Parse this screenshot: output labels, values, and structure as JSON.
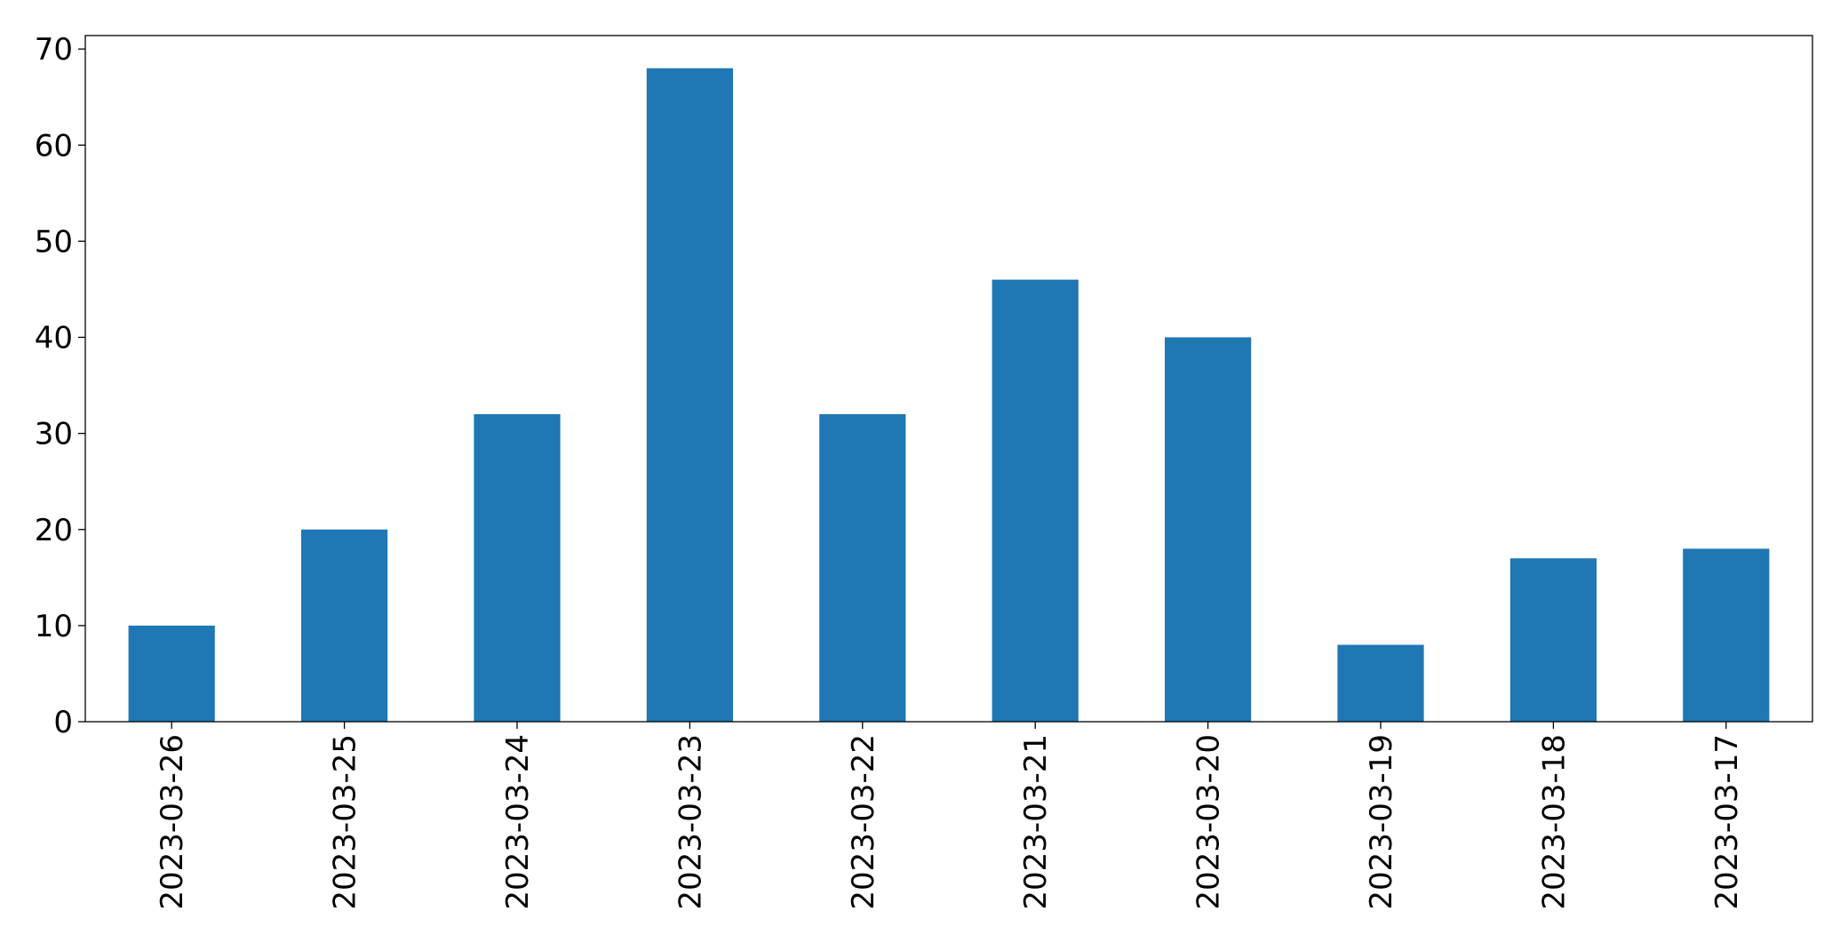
{
  "chart_data": {
    "type": "bar",
    "categories": [
      "2023-03-26",
      "2023-03-25",
      "2023-03-24",
      "2023-03-23",
      "2023-03-22",
      "2023-03-21",
      "2023-03-20",
      "2023-03-19",
      "2023-03-18",
      "2023-03-17"
    ],
    "values": [
      10,
      20,
      32,
      68,
      32,
      46,
      40,
      8,
      17,
      18
    ],
    "color": "#1f77b4",
    "ylim": [
      0,
      71.4
    ],
    "yticks": [
      0,
      10,
      20,
      30,
      40,
      50,
      60,
      70
    ],
    "grid": false
  }
}
